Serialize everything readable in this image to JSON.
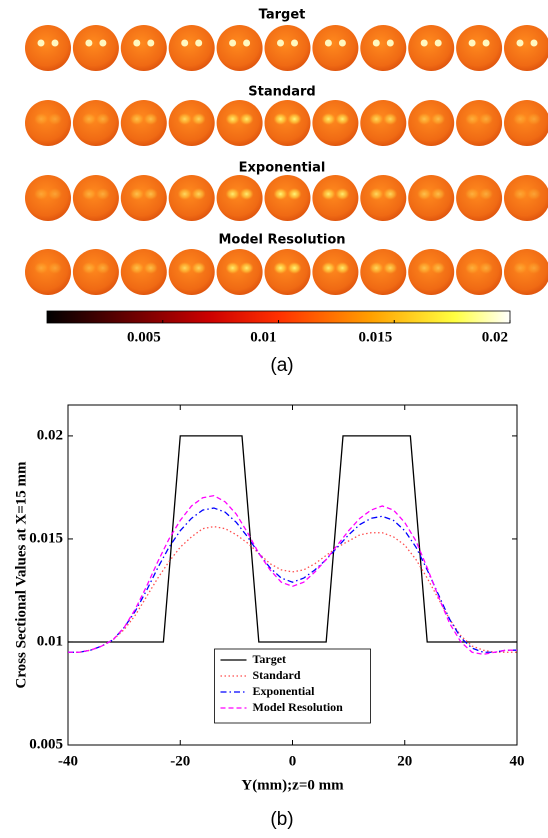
{
  "chart_data": [
    {
      "type": "image",
      "row_titles": [
        "Target",
        "Standard",
        "Exponential",
        "Model Resolution"
      ],
      "colorbar": {
        "clim": [
          0,
          0.02
        ],
        "ticks": [
          0.005,
          0.01,
          0.015,
          0.02
        ]
      },
      "caption": "(a)"
    },
    {
      "type": "line",
      "xlabel": "Y(mm);z=0 mm",
      "ylabel": "Cross Sectional Values at X=15 mm",
      "caption": "(b)",
      "xlim": [
        -40,
        40
      ],
      "xticks": [
        -40,
        -20,
        0,
        20,
        40
      ],
      "ylim": [
        0.005,
        0.0215
      ],
      "yticks": [
        0.005,
        0.01,
        0.015,
        0.02
      ],
      "legend": "lower center",
      "x": [
        -40,
        -38,
        -36,
        -34,
        -32,
        -30,
        -28,
        -26,
        -24,
        -22,
        -20,
        -18,
        -16,
        -14,
        -12,
        -10,
        -8,
        -6,
        -4,
        -2,
        0,
        2,
        4,
        6,
        8,
        10,
        12,
        14,
        16,
        18,
        20,
        22,
        24,
        26,
        28,
        30,
        32,
        34,
        36,
        38,
        40
      ],
      "series": [
        {
          "name": "Target",
          "color": "#000000",
          "style": "solid",
          "x": [
            -40,
            -23,
            -20,
            -9,
            -6,
            6,
            9,
            21,
            24,
            40
          ],
          "values": [
            0.01,
            0.01,
            0.02,
            0.02,
            0.01,
            0.01,
            0.02,
            0.02,
            0.01,
            0.01
          ]
        },
        {
          "name": "Standard",
          "color": "#ff4d4d",
          "style": "dotted",
          "values": [
            0.0095,
            0.0095,
            0.0096,
            0.0098,
            0.0101,
            0.0106,
            0.0113,
            0.0122,
            0.0131,
            0.0139,
            0.0146,
            0.0151,
            0.0155,
            0.0156,
            0.0155,
            0.0152,
            0.0148,
            0.0143,
            0.0138,
            0.0135,
            0.0134,
            0.0135,
            0.0138,
            0.0142,
            0.0146,
            0.0149,
            0.0152,
            0.0153,
            0.0153,
            0.0151,
            0.0147,
            0.014,
            0.0131,
            0.0121,
            0.0111,
            0.0103,
            0.0098,
            0.0096,
            0.0095,
            0.0095,
            0.0095
          ]
        },
        {
          "name": "Exponential",
          "color": "#0000ff",
          "style": "dashdot",
          "values": [
            0.0095,
            0.0095,
            0.0096,
            0.0098,
            0.0101,
            0.0107,
            0.0115,
            0.0125,
            0.0136,
            0.0146,
            0.0154,
            0.016,
            0.0164,
            0.0165,
            0.0163,
            0.0158,
            0.0151,
            0.0143,
            0.0136,
            0.0131,
            0.0129,
            0.0131,
            0.0135,
            0.014,
            0.0146,
            0.0152,
            0.0157,
            0.016,
            0.0161,
            0.0159,
            0.0154,
            0.0146,
            0.0135,
            0.0123,
            0.0111,
            0.0102,
            0.0097,
            0.0095,
            0.0095,
            0.0096,
            0.0096
          ]
        },
        {
          "name": "Model Resolution",
          "color": "#ff00ff",
          "style": "dashed",
          "values": [
            0.0095,
            0.0095,
            0.0096,
            0.0098,
            0.0101,
            0.0107,
            0.0116,
            0.0127,
            0.0139,
            0.015,
            0.0159,
            0.0166,
            0.017,
            0.0171,
            0.0168,
            0.0162,
            0.0153,
            0.0143,
            0.0135,
            0.0129,
            0.0127,
            0.0129,
            0.0134,
            0.014,
            0.0147,
            0.0154,
            0.016,
            0.0164,
            0.0166,
            0.0164,
            0.0158,
            0.0149,
            0.0136,
            0.0122,
            0.0109,
            0.01,
            0.0095,
            0.0094,
            0.0095,
            0.0096,
            0.0096
          ]
        }
      ]
    }
  ]
}
